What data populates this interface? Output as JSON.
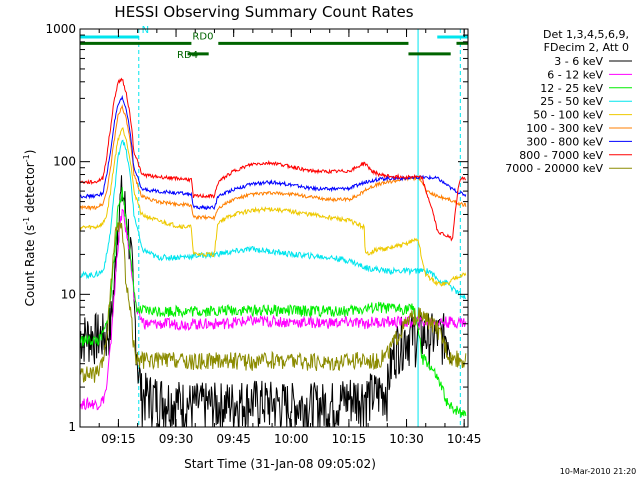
{
  "chart_data": {
    "type": "line",
    "title": "HESSI Observing Summary Count Rates",
    "xlabel": "Start Time (31-Jan-08 09:05:02)",
    "ylabel": "Count Rate (s",
    "ylabel_sup1": "-1",
    "ylabel_mid": " detector",
    "ylabel_sup2": "-1",
    "ylabel_end": ")",
    "y_scale": "log",
    "ylim": [
      1,
      1000
    ],
    "x_unit": "minutes after 09:05:02",
    "xlim": [
      0,
      101
    ],
    "x_ticks": [
      {
        "label": "09:15",
        "x": 10
      },
      {
        "label": "09:30",
        "x": 25
      },
      {
        "label": "09:45",
        "x": 40
      },
      {
        "label": "10:00",
        "x": 55
      },
      {
        "label": "10:15",
        "x": 70
      },
      {
        "label": "10:30",
        "x": 85
      },
      {
        "label": "10:45",
        "x": 100
      }
    ],
    "y_ticks": [
      {
        "label": "1",
        "y": 1
      },
      {
        "label": "10",
        "y": 10
      },
      {
        "label": "100",
        "y": 100
      },
      {
        "label": "1000",
        "y": 1000
      }
    ],
    "legend_header": [
      "Det 1,3,4,5,6,9,",
      "FDecim 2, Att 0"
    ],
    "legend_position": "right",
    "flags": [
      {
        "label": "N",
        "color": "#00e5ee",
        "y": 870,
        "segments": [
          [
            0,
            15.3
          ],
          [
            93,
            101
          ]
        ]
      },
      {
        "label": "RD0",
        "color": "#006400",
        "y": 780,
        "segments": [
          [
            0,
            29
          ],
          [
            36,
            85.5
          ],
          [
            98,
            101
          ]
        ]
      },
      {
        "label": "RD4",
        "color": "#006400",
        "y": 650,
        "segments": [
          [
            28,
            33.5
          ],
          [
            85.5,
            96.5
          ]
        ]
      }
    ],
    "vlines": [
      {
        "x": 0,
        "color": "#00e5ee",
        "style": "solid"
      },
      {
        "x": 15.3,
        "color": "#00e5ee",
        "style": "dashed"
      },
      {
        "x": 88,
        "color": "#00e5ee",
        "style": "solid"
      },
      {
        "x": 99,
        "color": "#00e5ee",
        "style": "dashed"
      }
    ],
    "series": [
      {
        "name": "3 - 6 keV",
        "color": "#000000",
        "x": [
          0,
          5,
          7,
          8,
          9,
          10,
          11,
          12,
          14,
          15,
          16,
          29,
          36,
          44,
          55,
          65,
          70,
          77,
          80,
          81,
          82,
          83,
          85,
          87,
          90,
          93,
          96,
          97
        ],
        "y": [
          5,
          5,
          5,
          6,
          12,
          40,
          60,
          40,
          8,
          3,
          1.8,
          1.5,
          1.5,
          1.6,
          1.5,
          1.5,
          1.7,
          1.8,
          2,
          3,
          4,
          4.5,
          5,
          5,
          5,
          5,
          5,
          4
        ]
      },
      {
        "name": "6 - 12 keV",
        "color": "#ff00ff",
        "x": [
          0,
          5,
          6,
          7,
          8,
          9,
          10,
          11,
          12,
          14,
          15,
          17,
          20,
          25,
          35,
          45,
          55,
          65,
          70,
          74,
          76,
          78,
          80,
          85,
          88,
          90,
          93,
          96,
          97,
          99,
          100.5
        ],
        "y": [
          1.5,
          1.5,
          1.6,
          2,
          4,
          10,
          25,
          43,
          30,
          10,
          7,
          6,
          6,
          6,
          6,
          6.3,
          6.2,
          6.1,
          6.2,
          6,
          6.2,
          6.2,
          6.2,
          6.2,
          6.2,
          6.2,
          6.2,
          6.2,
          6.2,
          6.2,
          6.2
        ]
      },
      {
        "name": "12 - 25 keV",
        "color": "#00ee00",
        "x": [
          0,
          5,
          6,
          7,
          8,
          9,
          10,
          11,
          12,
          14,
          15,
          17,
          20,
          25,
          30,
          40,
          50,
          60,
          70,
          74,
          78,
          80,
          85,
          87,
          89,
          90,
          93,
          96,
          97,
          99,
          100.5
        ],
        "y": [
          4.5,
          4.5,
          5,
          6,
          9,
          20,
          45,
          60,
          35,
          10,
          7.5,
          7.5,
          7.5,
          7.5,
          7.5,
          7.6,
          7.6,
          7.5,
          7.5,
          7.8,
          8,
          7.8,
          7.8,
          7.8,
          3.2,
          3.2,
          2.3,
          1.4,
          1.4,
          1.3,
          1.3
        ]
      },
      {
        "name": "25 - 50 keV",
        "color": "#00e5ee",
        "x": [
          0,
          4,
          6,
          7,
          8,
          9,
          10,
          11,
          12,
          14,
          16,
          20,
          25,
          35,
          45,
          55,
          65,
          70,
          74,
          80,
          85,
          88,
          91,
          93,
          96,
          97,
          99,
          100.5
        ],
        "y": [
          14,
          14,
          15,
          20,
          30,
          60,
          110,
          150,
          120,
          40,
          22,
          19,
          19,
          20,
          22,
          20,
          19,
          18,
          16,
          15,
          15,
          15,
          15,
          13,
          12,
          11,
          10,
          9
        ]
      },
      {
        "name": "50 - 100 keV",
        "color": "#eec900",
        "x": [
          0,
          4,
          6,
          7,
          8,
          9,
          10,
          11,
          12,
          14,
          16,
          20,
          25,
          29,
          29.5,
          32,
          35,
          36,
          40,
          45,
          50,
          55,
          60,
          65,
          70,
          72,
          74,
          74.2,
          78,
          80,
          85,
          86,
          88,
          89,
          90,
          93,
          96,
          97,
          99,
          100.5
        ],
        "y": [
          32,
          32,
          34,
          40,
          60,
          100,
          150,
          180,
          150,
          60,
          40,
          36,
          33,
          32,
          20,
          20,
          20,
          35,
          40,
          43,
          44,
          42,
          40,
          38,
          36,
          34,
          32,
          20,
          22,
          22,
          24,
          25,
          26,
          18,
          14,
          12,
          12,
          13,
          14,
          14
        ]
      },
      {
        "name": "100 - 300 keV",
        "color": "#ff7f00",
        "x": [
          0,
          4,
          6,
          7,
          8,
          9,
          10,
          11,
          12,
          14,
          16,
          20,
          25,
          29,
          29.5,
          32,
          35,
          36,
          40,
          45,
          50,
          55,
          60,
          65,
          70,
          72,
          74,
          76,
          78,
          80,
          82,
          85,
          87,
          88,
          89,
          90,
          93,
          96,
          97,
          99,
          100.5
        ],
        "y": [
          45,
          45,
          48,
          60,
          90,
          150,
          230,
          260,
          210,
          80,
          55,
          50,
          48,
          47,
          38,
          38,
          38,
          45,
          52,
          57,
          58,
          57,
          54,
          52,
          52,
          55,
          60,
          65,
          68,
          70,
          72,
          75,
          75,
          76,
          72,
          60,
          55,
          52,
          50,
          48,
          47
        ]
      },
      {
        "name": "300 - 800 keV",
        "color": "#0000ff",
        "x": [
          0,
          4,
          6,
          7,
          8,
          9,
          10,
          11,
          12,
          14,
          16,
          20,
          25,
          29,
          29.5,
          32,
          35,
          36,
          40,
          45,
          50,
          55,
          60,
          65,
          70,
          72,
          74,
          76,
          78,
          80,
          82,
          85,
          87,
          88,
          89,
          90,
          93,
          96,
          97,
          99,
          100.5
        ],
        "y": [
          55,
          55,
          58,
          80,
          120,
          200,
          270,
          300,
          250,
          90,
          62,
          60,
          58,
          57,
          45,
          45,
          45,
          55,
          62,
          68,
          70,
          67,
          63,
          62,
          63,
          66,
          70,
          72,
          74,
          75,
          75,
          75,
          75,
          76,
          76,
          76,
          75,
          65,
          62,
          58,
          56
        ]
      },
      {
        "name": "800 - 7000 keV",
        "color": "#ff0000",
        "x": [
          0,
          4,
          6,
          7,
          8,
          9,
          10,
          11,
          12,
          14,
          16,
          20,
          25,
          29,
          29.5,
          32,
          35,
          36,
          40,
          45,
          50,
          55,
          60,
          65,
          70,
          72,
          74,
          76,
          78,
          80,
          82,
          85,
          87,
          88,
          89,
          90,
          93,
          96,
          97,
          99,
          100.5
        ],
        "y": [
          70,
          70,
          75,
          110,
          180,
          300,
          400,
          420,
          330,
          120,
          80,
          77,
          75,
          73,
          55,
          55,
          55,
          70,
          85,
          96,
          98,
          92,
          85,
          84,
          85,
          90,
          98,
          85,
          80,
          78,
          77,
          77,
          77,
          76,
          76,
          60,
          30,
          27,
          26,
          75,
          74
        ]
      },
      {
        "name": "7000 - 20000 keV",
        "color": "#8b8b00",
        "x": [
          0,
          4,
          5,
          6,
          7,
          8,
          9,
          10,
          11,
          12,
          14,
          15,
          17,
          20,
          25,
          28,
          30,
          35,
          40,
          45,
          50,
          55,
          60,
          65,
          70,
          74,
          76,
          78,
          80,
          82,
          84,
          86,
          88,
          90,
          93,
          96,
          97,
          99,
          100.5
        ],
        "y": [
          2.5,
          2.5,
          2.6,
          3,
          5,
          10,
          25,
          35,
          30,
          12,
          4,
          3.2,
          3.2,
          3.2,
          3.2,
          3.1,
          3.1,
          3.2,
          3.2,
          3.1,
          3.2,
          3.2,
          3.1,
          3.1,
          3.2,
          3.2,
          3.2,
          3.2,
          3.6,
          4.5,
          5.5,
          6.5,
          7,
          6.5,
          5.5,
          3.5,
          3.3,
          3.3,
          3.2
        ]
      }
    ]
  },
  "footer": {
    "timestamp": "10-Mar-2010 21:20"
  }
}
